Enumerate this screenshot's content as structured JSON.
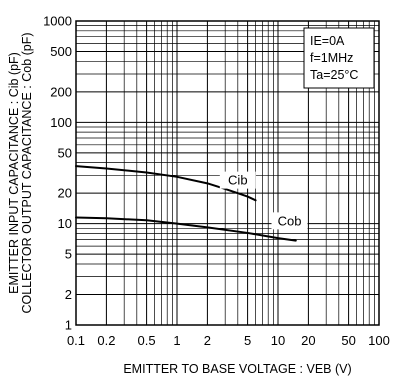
{
  "chart_data": {
    "type": "line",
    "title": "",
    "xlabel": "EMITTER TO BASE VOLTAGE : VEB (V)",
    "ylabel_line1": "EMITTER INPUT CAPACITANCE : Cib (pF)",
    "ylabel_line2": "COLLECTOR OUTPUT CAPACITANCE : Cob (pF)",
    "x_scale": "log",
    "y_scale": "log",
    "xlim": [
      0.1,
      100
    ],
    "ylim": [
      1,
      1000
    ],
    "grid": true,
    "x_ticks": [
      "0.1",
      "0.2",
      "0.5",
      "1",
      "2",
      "5",
      "10",
      "20",
      "50",
      "100"
    ],
    "x_tick_values": [
      0.1,
      0.2,
      0.5,
      1,
      2,
      5,
      10,
      20,
      50,
      100
    ],
    "y_ticks": [
      "1",
      "2",
      "5",
      "10",
      "20",
      "50",
      "100",
      "200",
      "500",
      "1000"
    ],
    "y_tick_values": [
      1,
      2,
      5,
      10,
      20,
      50,
      100,
      200,
      500,
      1000
    ],
    "conditions": [
      "IE=0A",
      "f=1MHz",
      "Ta=25°C"
    ],
    "series": [
      {
        "name": "Cib",
        "x": [
          0.1,
          0.2,
          0.5,
          1,
          2,
          3,
          4,
          5,
          6
        ],
        "y": [
          37,
          35,
          32,
          29,
          25,
          22,
          20,
          18.5,
          17
        ]
      },
      {
        "name": "Cob",
        "x": [
          0.1,
          0.2,
          0.5,
          1,
          2,
          5,
          10,
          15
        ],
        "y": [
          11.5,
          11.3,
          10.8,
          10,
          9.2,
          8.1,
          7.2,
          6.8
        ]
      }
    ]
  }
}
